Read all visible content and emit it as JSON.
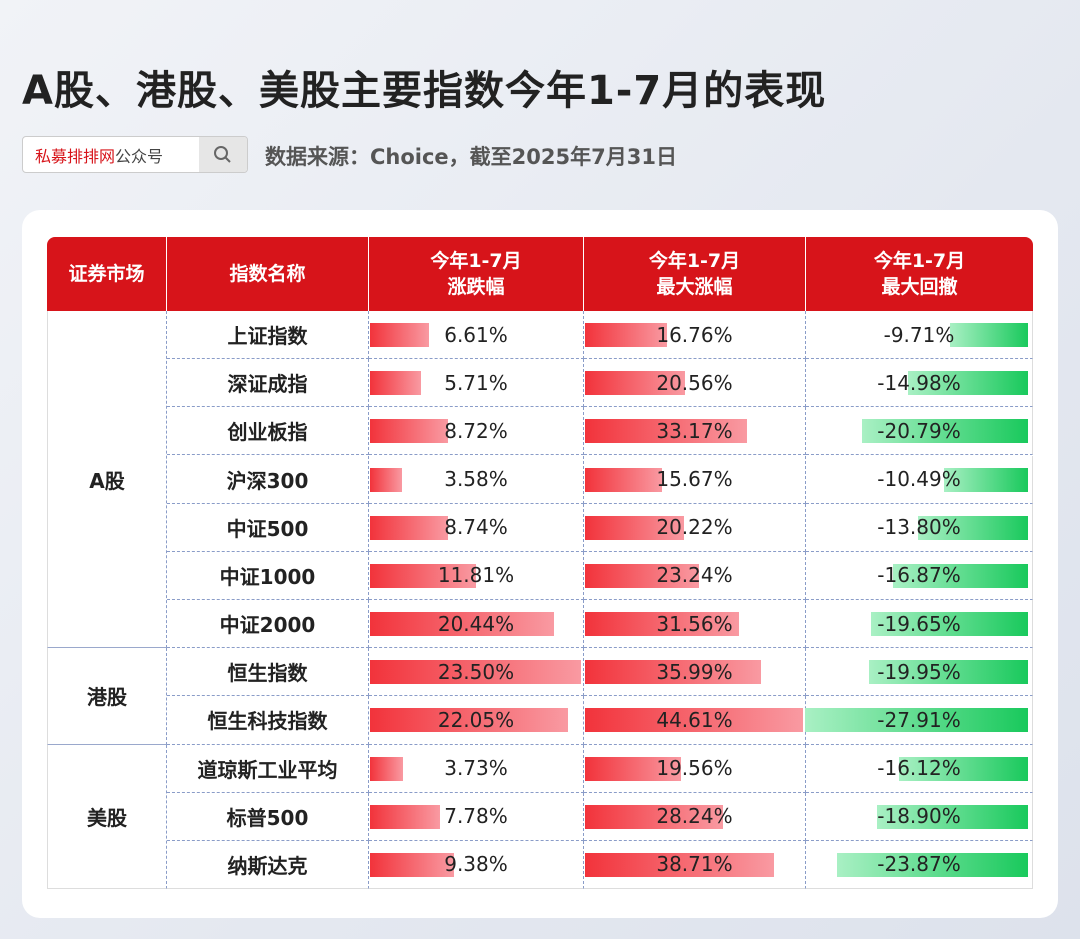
{
  "header": {
    "title": "A股、港股、美股主要指数今年1-7月的表现",
    "search_brand": "私募排排网",
    "search_suffix": "公众号",
    "source": "数据来源：Choice，截至2025年7月31日"
  },
  "table": {
    "columns": [
      [
        "证券市场"
      ],
      [
        "指数名称"
      ],
      [
        "今年1-7月",
        "涨跌幅"
      ],
      [
        "今年1-7月",
        "最大涨幅"
      ],
      [
        "今年1-7月",
        "最大回撤"
      ]
    ],
    "markets": [
      {
        "name": "A股",
        "indices": [
          {
            "name": "上证指数",
            "change": 6.61,
            "change_label": "6.61%",
            "max_gain": 16.76,
            "max_gain_label": "16.76%",
            "max_drawdown": -9.71,
            "max_drawdown_label": "-9.71%"
          },
          {
            "name": "深证成指",
            "change": 5.71,
            "change_label": "5.71%",
            "max_gain": 20.56,
            "max_gain_label": "20.56%",
            "max_drawdown": -14.98,
            "max_drawdown_label": "-14.98%"
          },
          {
            "name": "创业板指",
            "change": 8.72,
            "change_label": "8.72%",
            "max_gain": 33.17,
            "max_gain_label": "33.17%",
            "max_drawdown": -20.79,
            "max_drawdown_label": "-20.79%"
          },
          {
            "name": "沪深300",
            "change": 3.58,
            "change_label": "3.58%",
            "max_gain": 15.67,
            "max_gain_label": "15.67%",
            "max_drawdown": -10.49,
            "max_drawdown_label": "-10.49%"
          },
          {
            "name": "中证500",
            "change": 8.74,
            "change_label": "8.74%",
            "max_gain": 20.22,
            "max_gain_label": "20.22%",
            "max_drawdown": -13.8,
            "max_drawdown_label": "-13.80%"
          },
          {
            "name": "中证1000",
            "change": 11.81,
            "change_label": "11.81%",
            "max_gain": 23.24,
            "max_gain_label": "23.24%",
            "max_drawdown": -16.87,
            "max_drawdown_label": "-16.87%"
          },
          {
            "name": "中证2000",
            "change": 20.44,
            "change_label": "20.44%",
            "max_gain": 31.56,
            "max_gain_label": "31.56%",
            "max_drawdown": -19.65,
            "max_drawdown_label": "-19.65%"
          }
        ]
      },
      {
        "name": "港股",
        "indices": [
          {
            "name": "恒生指数",
            "change": 23.5,
            "change_label": "23.50%",
            "max_gain": 35.99,
            "max_gain_label": "35.99%",
            "max_drawdown": -19.95,
            "max_drawdown_label": "-19.95%"
          },
          {
            "name": "恒生科技指数",
            "change": 22.05,
            "change_label": "22.05%",
            "max_gain": 44.61,
            "max_gain_label": "44.61%",
            "max_drawdown": -27.91,
            "max_drawdown_label": "-27.91%"
          }
        ]
      },
      {
        "name": "美股",
        "indices": [
          {
            "name": "道琼斯工业平均",
            "change": 3.73,
            "change_label": "3.73%",
            "max_gain": 19.56,
            "max_gain_label": "19.56%",
            "max_drawdown": -16.12,
            "max_drawdown_label": "-16.12%"
          },
          {
            "name": "标普500",
            "change": 7.78,
            "change_label": "7.78%",
            "max_gain": 28.24,
            "max_gain_label": "28.24%",
            "max_drawdown": -18.9,
            "max_drawdown_label": "-18.90%"
          },
          {
            "name": "纳斯达克",
            "change": 9.38,
            "change_label": "9.38%",
            "max_gain": 38.71,
            "max_gain_label": "38.71%",
            "max_drawdown": -23.87,
            "max_drawdown_label": "-23.87%"
          }
        ]
      }
    ]
  }
}
